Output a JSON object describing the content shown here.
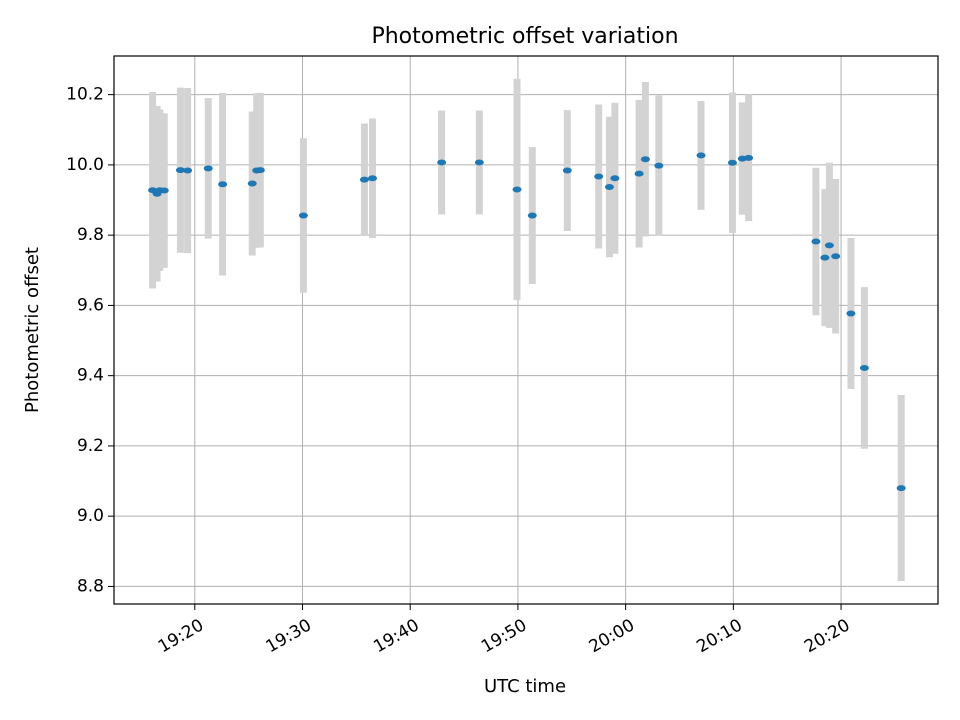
{
  "chart_data": {
    "type": "scatter",
    "title": "Photometric offset variation",
    "xlabel": "UTC time",
    "ylabel": "Photometric offset",
    "x_ticks": [
      "19:20",
      "19:30",
      "19:40",
      "19:50",
      "20:00",
      "20:10",
      "20:20"
    ],
    "y_ticks": [
      "8.8",
      "9.0",
      "9.2",
      "9.4",
      "9.6",
      "9.8",
      "10.0",
      "10.2"
    ],
    "xlim": [
      "19:12:30",
      "20:29:00"
    ],
    "ylim": [
      8.75,
      10.31
    ],
    "grid": true,
    "errorbar_color": "#d3d3d3",
    "marker_color": "#1f77b4",
    "points": [
      {
        "t": "19:16:05",
        "y": 9.928,
        "err": 0.28
      },
      {
        "t": "19:16:30",
        "y": 9.918,
        "err": 0.25
      },
      {
        "t": "19:16:45",
        "y": 9.928,
        "err": 0.23
      },
      {
        "t": "19:17:10",
        "y": 9.927,
        "err": 0.22
      },
      {
        "t": "19:18:40",
        "y": 9.985,
        "err": 0.235
      },
      {
        "t": "19:19:20",
        "y": 9.984,
        "err": 0.235
      },
      {
        "t": "19:21:15",
        "y": 9.99,
        "err": 0.2
      },
      {
        "t": "19:22:35",
        "y": 9.945,
        "err": 0.26
      },
      {
        "t": "19:25:20",
        "y": 9.947,
        "err": 0.205
      },
      {
        "t": "19:25:45",
        "y": 9.984,
        "err": 0.22
      },
      {
        "t": "19:26:05",
        "y": 9.985,
        "err": 0.22
      },
      {
        "t": "19:30:05",
        "y": 9.856,
        "err": 0.22
      },
      {
        "t": "19:35:45",
        "y": 9.958,
        "err": 0.16
      },
      {
        "t": "19:36:30",
        "y": 9.962,
        "err": 0.17
      },
      {
        "t": "19:42:55",
        "y": 10.007,
        "err": 0.148
      },
      {
        "t": "19:46:25",
        "y": 10.007,
        "err": 0.148
      },
      {
        "t": "19:49:55",
        "y": 9.93,
        "err": 0.315
      },
      {
        "t": "19:51:20",
        "y": 9.856,
        "err": 0.195
      },
      {
        "t": "19:54:35",
        "y": 9.984,
        "err": 0.172
      },
      {
        "t": "19:57:30",
        "y": 9.967,
        "err": 0.205
      },
      {
        "t": "19:58:30",
        "y": 9.937,
        "err": 0.2
      },
      {
        "t": "19:59:00",
        "y": 9.962,
        "err": 0.215
      },
      {
        "t": "20:01:15",
        "y": 9.975,
        "err": 0.21
      },
      {
        "t": "20:01:50",
        "y": 10.016,
        "err": 0.22
      },
      {
        "t": "20:03:05",
        "y": 9.998,
        "err": 0.2
      },
      {
        "t": "20:07:00",
        "y": 10.027,
        "err": 0.155
      },
      {
        "t": "20:09:55",
        "y": 10.006,
        "err": 0.2
      },
      {
        "t": "20:10:50",
        "y": 10.018,
        "err": 0.16
      },
      {
        "t": "20:11:25",
        "y": 10.02,
        "err": 0.18
      },
      {
        "t": "20:17:40",
        "y": 9.782,
        "err": 0.21
      },
      {
        "t": "20:18:30",
        "y": 9.736,
        "err": 0.195
      },
      {
        "t": "20:18:55",
        "y": 9.771,
        "err": 0.235
      },
      {
        "t": "20:19:30",
        "y": 9.74,
        "err": 0.22
      },
      {
        "t": "20:20:55",
        "y": 9.577,
        "err": 0.215
      },
      {
        "t": "20:22:10",
        "y": 9.422,
        "err": 0.23
      },
      {
        "t": "20:25:35",
        "y": 9.08,
        "err": 0.265
      }
    ]
  }
}
